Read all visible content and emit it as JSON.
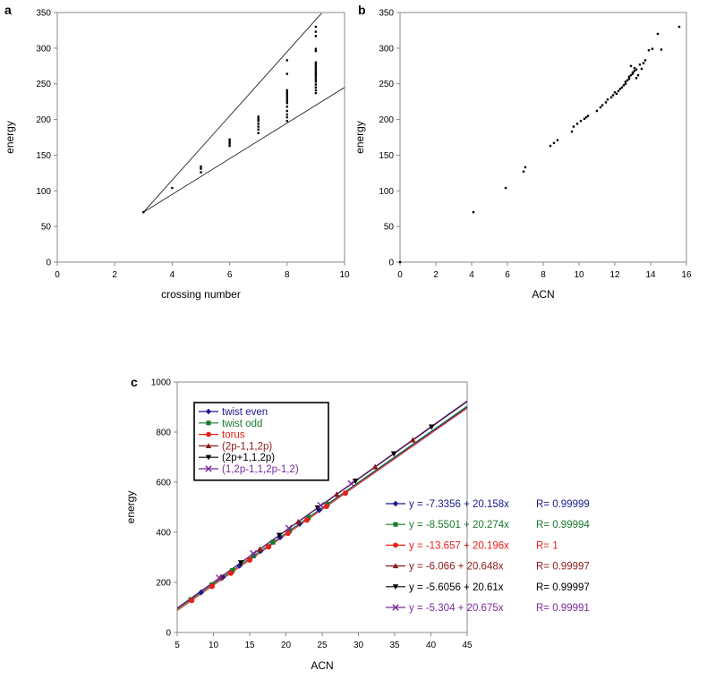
{
  "chart_data": [
    {
      "panel_label": "a",
      "type": "scatter",
      "xlabel": "crossing number",
      "ylabel": "energy",
      "xlim": [
        0,
        10
      ],
      "ylim": [
        0,
        350
      ],
      "xticks": [
        0,
        2,
        4,
        6,
        8,
        10
      ],
      "yticks": [
        0,
        50,
        100,
        150,
        200,
        250,
        300,
        350
      ],
      "grid": false,
      "bound_lines": [
        {
          "x": [
            3,
            9.2
          ],
          "y": [
            70,
            349
          ]
        },
        {
          "x": [
            3,
            10
          ],
          "y": [
            70,
            245
          ]
        }
      ],
      "points": [
        [
          3,
          70
        ],
        [
          4,
          104
        ],
        [
          5,
          126
        ],
        [
          5,
          131
        ],
        [
          5,
          134
        ],
        [
          6,
          163
        ],
        [
          6,
          166
        ],
        [
          6,
          169
        ],
        [
          6,
          172
        ],
        [
          7,
          181
        ],
        [
          7,
          186
        ],
        [
          7,
          190
        ],
        [
          7,
          194
        ],
        [
          7,
          198
        ],
        [
          7,
          201
        ],
        [
          7,
          204
        ],
        [
          8,
          198
        ],
        [
          8,
          203
        ],
        [
          8,
          207
        ],
        [
          8,
          212
        ],
        [
          8,
          218
        ],
        [
          8,
          223
        ],
        [
          8,
          226
        ],
        [
          8,
          229
        ],
        [
          8,
          232
        ],
        [
          8,
          235
        ],
        [
          8,
          238
        ],
        [
          8,
          241
        ],
        [
          8,
          264
        ],
        [
          8,
          283
        ],
        [
          9,
          237
        ],
        [
          9,
          241
        ],
        [
          9,
          245
        ],
        [
          9,
          249
        ],
        [
          9,
          253
        ],
        [
          9,
          256
        ],
        [
          9,
          259
        ],
        [
          9,
          262
        ],
        [
          9,
          265
        ],
        [
          9,
          268
        ],
        [
          9,
          271
        ],
        [
          9,
          274
        ],
        [
          9,
          277
        ],
        [
          9,
          280
        ],
        [
          9,
          296
        ],
        [
          9,
          299
        ],
        [
          9,
          317
        ],
        [
          9,
          323
        ],
        [
          9,
          330
        ]
      ]
    },
    {
      "panel_label": "b",
      "type": "scatter",
      "xlabel": "ACN",
      "ylabel": "energy",
      "xlim": [
        0,
        16
      ],
      "ylim": [
        0,
        350
      ],
      "xticks": [
        0,
        2,
        4,
        6,
        8,
        10,
        12,
        14,
        16
      ],
      "yticks": [
        0,
        50,
        100,
        150,
        200,
        250,
        300,
        350
      ],
      "grid": false,
      "points": [
        [
          0,
          0
        ],
        [
          4.1,
          70
        ],
        [
          5.9,
          104
        ],
        [
          6.9,
          127
        ],
        [
          7.0,
          133
        ],
        [
          8.4,
          163
        ],
        [
          8.6,
          167
        ],
        [
          8.8,
          171
        ],
        [
          9.6,
          183
        ],
        [
          9.7,
          190
        ],
        [
          9.9,
          194
        ],
        [
          10.1,
          198
        ],
        [
          10.3,
          201
        ],
        [
          10.5,
          205
        ],
        [
          10.4,
          203
        ],
        [
          11.0,
          212
        ],
        [
          11.2,
          217
        ],
        [
          11.3,
          220
        ],
        [
          11.5,
          224
        ],
        [
          11.6,
          228
        ],
        [
          11.8,
          231
        ],
        [
          11.9,
          234
        ],
        [
          12.0,
          238
        ],
        [
          12.1,
          236
        ],
        [
          12.2,
          240
        ],
        [
          12.3,
          243
        ],
        [
          12.4,
          245
        ],
        [
          12.5,
          248
        ],
        [
          12.6,
          250
        ],
        [
          12.6,
          253
        ],
        [
          12.7,
          255
        ],
        [
          12.8,
          257
        ],
        [
          12.8,
          260
        ],
        [
          12.9,
          262
        ],
        [
          13.0,
          264
        ],
        [
          13.0,
          266
        ],
        [
          13.1,
          268
        ],
        [
          13.2,
          270
        ],
        [
          13.2,
          258
        ],
        [
          13.3,
          262
        ],
        [
          13.1,
          272
        ],
        [
          12.9,
          275
        ],
        [
          13.4,
          277
        ],
        [
          13.6,
          279
        ],
        [
          13.5,
          271
        ],
        [
          13.7,
          283
        ],
        [
          13.9,
          297
        ],
        [
          14.1,
          299
        ],
        [
          14.4,
          320
        ],
        [
          14.6,
          298
        ],
        [
          15.6,
          330
        ]
      ]
    },
    {
      "panel_label": "c",
      "type": "line",
      "xlabel": "ACN",
      "ylabel": "energy",
      "xlim": [
        5,
        45
      ],
      "ylim": [
        0,
        1000
      ],
      "xticks": [
        5,
        10,
        15,
        20,
        25,
        30,
        35,
        40,
        45
      ],
      "yticks": [
        0,
        200,
        400,
        600,
        800,
        1000
      ],
      "grid": false,
      "legend_position": "top-left",
      "series": [
        {
          "name": "twist even",
          "color": "#1a1a8c",
          "marker": "diamond",
          "intercept": -7.3356,
          "slope": 20.158,
          "equation": "y = -7.3356 + 20.158x",
          "r_label": "R= 0.99999",
          "x": [
            8.3,
            11.3,
            13.6,
            16.5,
            19.2,
            21.9,
            24.6
          ]
        },
        {
          "name": "twist odd",
          "color": "#1a7a2e",
          "marker": "square",
          "intercept": -8.5501,
          "slope": 20.274,
          "equation": "y = -8.5501 + 20.274x",
          "r_label": "R= 0.99994",
          "x": [
            6.9,
            9.8,
            12.6,
            15.5,
            18.2,
            20.5,
            23.1,
            25.7
          ]
        },
        {
          "name": "torus",
          "color": "#e8201c",
          "marker": "circle",
          "intercept": -13.657,
          "slope": 20.196,
          "equation": "y = -13.657 + 20.196x",
          "r_label": "R= 1",
          "x": [
            7.0,
            9.8,
            12.4,
            15.0,
            17.6,
            20.3,
            22.9,
            25.6,
            28.2
          ]
        },
        {
          "name": "(2p-1,1,2p)",
          "color": "#8b1a1a",
          "marker": "triangle-up",
          "intercept": -6.066,
          "slope": 20.648,
          "equation": "y = -6.066 + 20.648x",
          "r_label": "R= 0.99997",
          "x": [
            11.0,
            16.4,
            21.7,
            27.0,
            32.3,
            37.5
          ]
        },
        {
          "name": "(2p+1,1,2p)",
          "color": "#000000",
          "marker": "triangle-down",
          "intercept": -5.6056,
          "slope": 20.61,
          "equation": "y = -5.6056 + 20.61x",
          "r_label": "R= 0.99997",
          "x": [
            13.8,
            19.1,
            24.4,
            29.6,
            34.9,
            40.1
          ]
        },
        {
          "name": "(1,2p-1,1,2p-1,2)",
          "color": "#7a2a9a",
          "marker": "x",
          "intercept": -5.304,
          "slope": 20.675,
          "equation": "y = -5.304 + 20.675x",
          "r_label": "R= 0.99991",
          "x": [
            10.8,
            15.5,
            20.4,
            24.8,
            29.0
          ]
        }
      ]
    }
  ]
}
